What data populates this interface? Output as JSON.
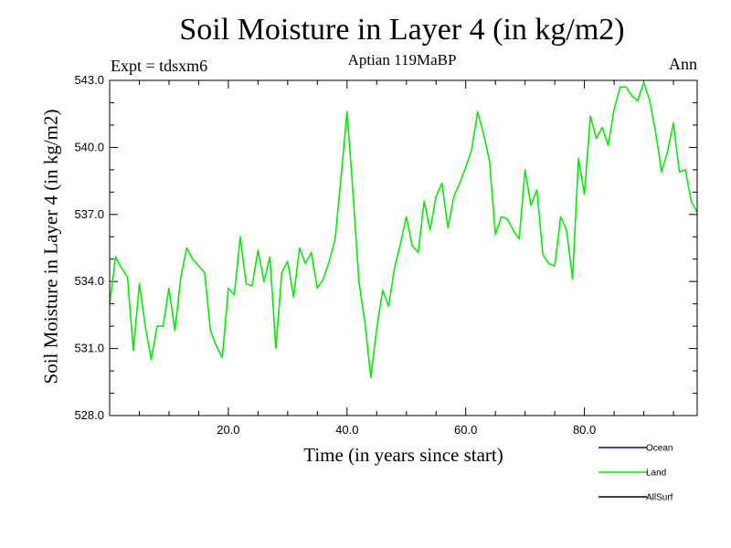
{
  "chart_data": {
    "type": "line",
    "title": "Soil Moisture in Layer 4 (in kg/m2)",
    "subtitle_left": "Expt = tdsxm6",
    "subtitle_center": "Aptian   119MaBP",
    "subtitle_right": "Ann",
    "xlabel": "Time (in years since start)",
    "ylabel": "Soil Moisture in Layer 4 (in kg/m2)",
    "xlim": [
      0,
      99
    ],
    "ylim": [
      528.0,
      543.0
    ],
    "xticks": [
      20,
      40,
      60,
      80
    ],
    "xtick_labels": [
      "20.0",
      "40.0",
      "60.0",
      "80.0"
    ],
    "yticks": [
      528,
      531,
      534,
      537,
      540,
      543
    ],
    "ytick_labels": [
      "528.0",
      "531.0",
      "534.0",
      "537.0",
      "540.0",
      "543.0"
    ],
    "legend": [
      {
        "label": "Ocean",
        "color": "#0000cc"
      },
      {
        "label": "Land",
        "color": "#00ee00"
      },
      {
        "label": "AllSurf",
        "color": "#000000"
      }
    ],
    "series": [
      {
        "name": "Land",
        "color": "#00ee00",
        "x": [
          0,
          1,
          2,
          3,
          4,
          5,
          6,
          7,
          8,
          9,
          10,
          11,
          12,
          13,
          14,
          15,
          16,
          17,
          18,
          19,
          20,
          21,
          22,
          23,
          24,
          25,
          26,
          27,
          28,
          29,
          30,
          31,
          32,
          33,
          34,
          35,
          36,
          37,
          38,
          39,
          40,
          41,
          42,
          43,
          44,
          45,
          46,
          47,
          48,
          49,
          50,
          51,
          52,
          53,
          54,
          55,
          56,
          57,
          58,
          59,
          60,
          61,
          62,
          63,
          64,
          65,
          66,
          67,
          68,
          69,
          70,
          71,
          72,
          73,
          74,
          75,
          76,
          77,
          78,
          79,
          80,
          81,
          82,
          83,
          84,
          85,
          86,
          87,
          88,
          89,
          90,
          91,
          92,
          93,
          94,
          95,
          96,
          97,
          98,
          99
        ],
        "values": [
          533.0,
          535.1,
          534.6,
          534.2,
          530.9,
          533.9,
          532.0,
          530.5,
          532.0,
          532.0,
          533.7,
          531.8,
          534.2,
          535.5,
          535.0,
          534.7,
          534.4,
          531.8,
          531.1,
          530.6,
          533.7,
          533.4,
          536.0,
          533.9,
          533.8,
          535.4,
          534.0,
          535.1,
          531.0,
          534.4,
          534.9,
          533.3,
          535.5,
          534.8,
          535.3,
          533.7,
          534.1,
          534.9,
          535.9,
          538.7,
          541.6,
          538.0,
          534.0,
          532.2,
          529.7,
          531.9,
          533.6,
          532.9,
          534.6,
          535.7,
          536.9,
          535.6,
          535.3,
          537.6,
          536.3,
          537.8,
          538.4,
          536.4,
          537.8,
          538.4,
          539.1,
          539.9,
          541.6,
          540.6,
          539.4,
          536.1,
          536.9,
          536.8,
          536.3,
          535.9,
          539.0,
          537.4,
          538.1,
          535.2,
          534.8,
          534.7,
          536.9,
          536.3,
          534.1,
          539.5,
          537.9,
          541.4,
          540.4,
          540.9,
          540.1,
          541.7,
          542.7,
          542.7,
          542.3,
          542.1,
          542.9,
          542.1,
          540.7,
          538.9,
          539.8,
          541.1,
          538.9,
          539.0,
          537.6,
          537.1
        ]
      }
    ]
  }
}
